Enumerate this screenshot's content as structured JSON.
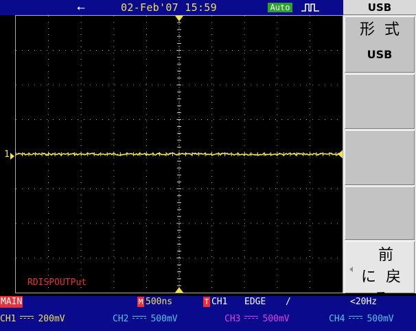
{
  "status_bar": {
    "usb_icon": "usb-connected-icon",
    "datetime": "02-Feb'07 15:59",
    "acq_mode": "Auto",
    "trigger_icon": "pulse-waveform-icon"
  },
  "screen": {
    "ch1_marker": "1",
    "status_message": "RDISPOUTPut",
    "trace_color": "#f2e542",
    "grid_color": "#9a9a9a"
  },
  "menu": {
    "title": "USB",
    "format_label": "形式",
    "format_value": "USB",
    "back_label": "前に戻る"
  },
  "info_row": {
    "main": "MAIN",
    "m_badge": "M",
    "timebase": "500ns",
    "t_badge": "T",
    "trigger_source": "CH1",
    "trigger_type": "EDGE",
    "trigger_slope": "/",
    "frequency": "<20Hz"
  },
  "channels": [
    {
      "name": "CH1",
      "scale": "200mV",
      "color": "#f0e060"
    },
    {
      "name": "CH2",
      "scale": "500mV",
      "color": "#4ec3f0"
    },
    {
      "name": "CH3",
      "scale": "500mV",
      "color": "#e040e0"
    },
    {
      "name": "CH4",
      "scale": "500mV",
      "color": "#4ec3f0"
    }
  ]
}
